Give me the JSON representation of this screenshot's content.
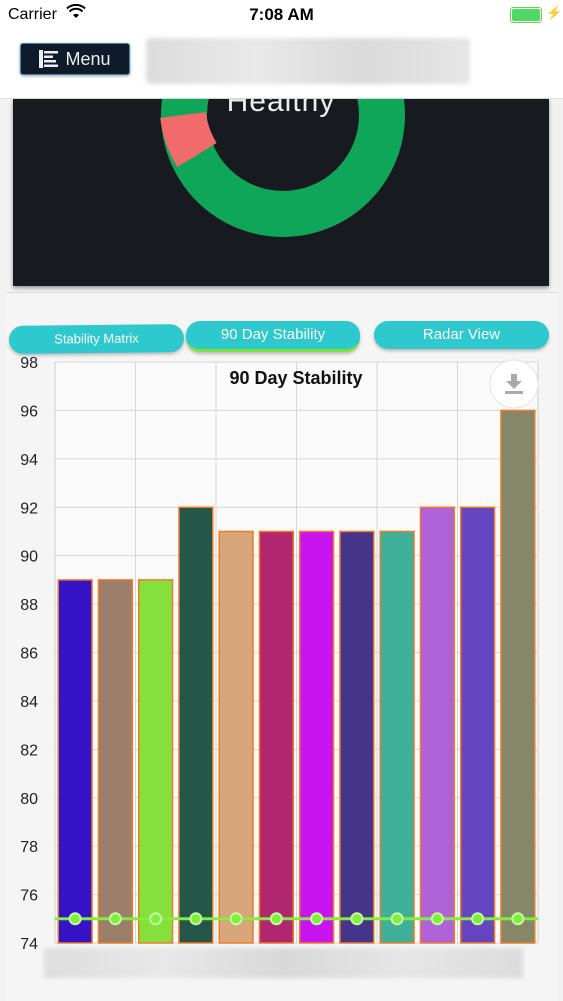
{
  "status_bar": {
    "carrier": "Carrier",
    "time": "7:08 AM"
  },
  "nav": {
    "menu_label": "Menu"
  },
  "health_panel": {
    "label": "Healthy",
    "segments": [
      {
        "name": "healthy",
        "color": "#0fa65a",
        "fraction": 0.85
      },
      {
        "name": "unhealthy",
        "color": "#f26b6b",
        "fraction": 0.15
      }
    ]
  },
  "tabs": [
    {
      "label": "Stability Matrix",
      "active": false
    },
    {
      "label": "90 Day Stability",
      "active": true
    },
    {
      "label": "Radar View",
      "active": false
    }
  ],
  "chart_data": {
    "type": "bar",
    "title": "90 Day Stability",
    "xlabel": "",
    "ylabel": "",
    "ylim": [
      74,
      98
    ],
    "yticks": [
      74,
      76,
      78,
      80,
      82,
      84,
      86,
      88,
      90,
      92,
      94,
      96,
      98
    ],
    "grid": true,
    "values": [
      89,
      89,
      89,
      92,
      91,
      91,
      91,
      91,
      91,
      92,
      92,
      96
    ],
    "colors": [
      "#3514c8",
      "#9c7f6a",
      "#86e03c",
      "#24574a",
      "#d7a67b",
      "#b0276f",
      "#c914f0",
      "#45358a",
      "#3eaf98",
      "#b062d8",
      "#6545c0",
      "#868768"
    ],
    "bar_edge_color": "#f07a28",
    "line_series": {
      "values": [
        75,
        75,
        75,
        75,
        75,
        75,
        75,
        75,
        75,
        75,
        75,
        75
      ],
      "color": "#7ef03c"
    }
  },
  "colors": {
    "accent": "#2ec9cf",
    "active_underline": "#7be33a",
    "menu_bg": "#0f1b2a"
  },
  "icons": {
    "download": "download-icon",
    "menu": "menu-icon",
    "wifi": "wifi-icon",
    "battery": "battery-icon"
  }
}
